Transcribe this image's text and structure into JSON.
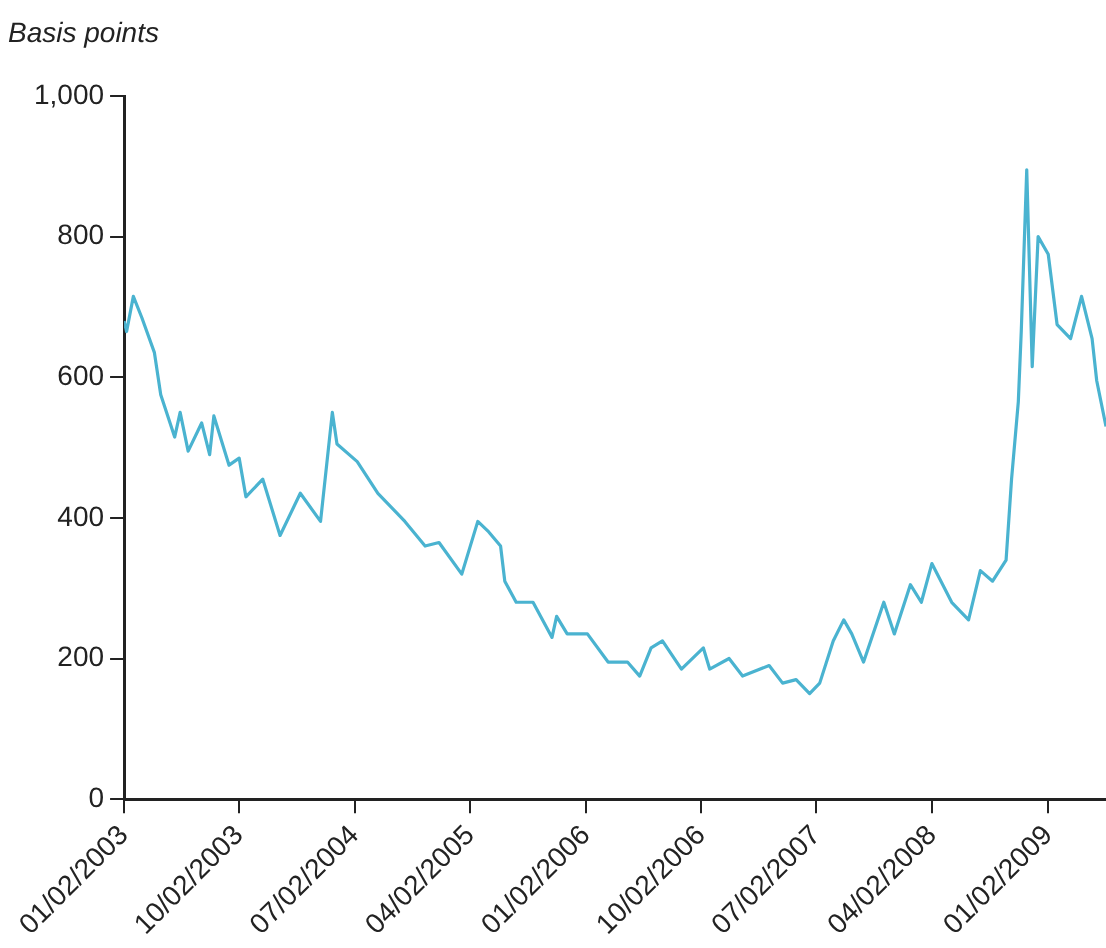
{
  "chart_data": {
    "type": "line",
    "ylabel": "Basis points",
    "x": [
      "2003-01-02",
      "2003-01-08",
      "2003-01-24",
      "2003-02-13",
      "2003-03-15",
      "2003-03-30",
      "2003-05-02",
      "2003-05-15",
      "2003-06-03",
      "2003-07-05",
      "2003-07-24",
      "2003-08-03",
      "2003-09-08",
      "2003-10-02",
      "2003-10-18",
      "2003-11-27",
      "2004-01-07",
      "2004-02-24",
      "2004-04-12",
      "2004-05-10",
      "2004-05-21",
      "2004-07-08",
      "2004-08-26",
      "2004-10-29",
      "2004-12-16",
      "2005-01-18",
      "2005-03-13",
      "2005-04-20",
      "2005-05-16",
      "2005-06-13",
      "2005-06-23",
      "2005-07-20",
      "2005-08-29",
      "2005-10-13",
      "2005-10-24",
      "2005-11-18",
      "2006-01-05",
      "2006-02-23",
      "2006-04-10",
      "2006-05-09",
      "2006-06-05",
      "2006-07-02",
      "2006-08-16",
      "2006-10-07",
      "2006-10-22",
      "2006-12-07",
      "2007-01-08",
      "2007-03-12",
      "2007-04-13",
      "2007-05-15",
      "2007-06-16",
      "2007-07-10",
      "2007-08-11",
      "2007-09-05",
      "2007-09-24",
      "2007-10-22",
      "2007-12-09",
      "2008-01-03",
      "2008-02-10",
      "2008-03-07",
      "2008-04-01",
      "2008-05-18",
      "2008-06-27",
      "2008-07-25",
      "2008-08-23",
      "2008-09-24",
      "2008-10-07",
      "2008-10-23",
      "2008-10-30",
      "2008-11-12",
      "2008-11-25",
      "2008-12-09",
      "2009-01-02",
      "2009-01-23",
      "2009-02-24",
      "2009-03-22",
      "2009-04-16",
      "2009-04-27",
      "2009-05-19"
    ],
    "series": [
      {
        "color": "#4ab3d0",
        "values": [
          680,
          665,
          715,
          685,
          635,
          575,
          515,
          550,
          495,
          535,
          490,
          545,
          475,
          485,
          430,
          455,
          375,
          435,
          395,
          550,
          505,
          480,
          435,
          395,
          360,
          365,
          320,
          395,
          380,
          360,
          310,
          280,
          280,
          230,
          260,
          235,
          235,
          195,
          195,
          175,
          215,
          225,
          185,
          215,
          185,
          200,
          175,
          190,
          165,
          170,
          150,
          165,
          225,
          255,
          235,
          195,
          280,
          235,
          305,
          280,
          335,
          280,
          255,
          325,
          310,
          340,
          455,
          565,
          665,
          895,
          615,
          800,
          775,
          675,
          655,
          715,
          655,
          595,
          530
        ]
      }
    ],
    "xlim": [
      "2003-01-02",
      "2009-05-19"
    ],
    "xticks": [
      {
        "value": "2003-01-02",
        "label": "01/02/2003"
      },
      {
        "value": "2003-10-02",
        "label": "10/02/2003"
      },
      {
        "value": "2004-07-02",
        "label": "07/02/2004"
      },
      {
        "value": "2005-04-02",
        "label": "04/02/2005"
      },
      {
        "value": "2006-01-02",
        "label": "01/02/2006"
      },
      {
        "value": "2006-10-02",
        "label": "10/02/2006"
      },
      {
        "value": "2007-07-02",
        "label": "07/02/2007"
      },
      {
        "value": "2008-04-02",
        "label": "04/02/2008"
      },
      {
        "value": "2009-01-02",
        "label": "01/02/2009"
      }
    ],
    "ylim": [
      0,
      1000
    ],
    "yticks": [
      0,
      200,
      400,
      600,
      800,
      {
        "value": 1000,
        "label": "1,000"
      }
    ],
    "grid": false,
    "legend": false,
    "marker": "none",
    "line_style": "solid"
  }
}
